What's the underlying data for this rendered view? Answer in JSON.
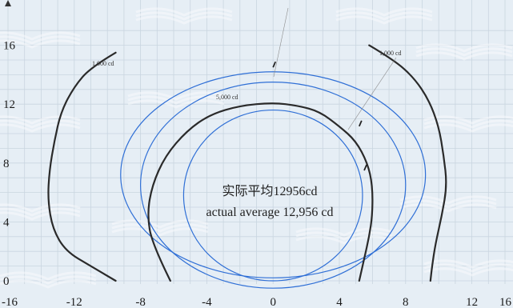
{
  "chart_data": {
    "type": "line",
    "title": "",
    "xlabel": "",
    "ylabel": "",
    "xlim": [
      -16,
      16
    ],
    "ylim": [
      0,
      17
    ],
    "grid": true,
    "x_ticks": [
      -16,
      -12,
      -8,
      -4,
      0,
      4,
      8,
      12,
      16
    ],
    "y_ticks": [
      0,
      4,
      8,
      12,
      16
    ],
    "x_tick_labels": [
      "-16",
      "-12",
      "-8",
      "-4",
      "0",
      "4",
      "8",
      "12",
      "16"
    ],
    "y_tick_labels": [
      "0",
      "4",
      "8",
      "12",
      "16"
    ],
    "annotations": {
      "center_cn": "实际平均12956cd",
      "center_en": "actual average 12,956 cd",
      "iso_left_1000": "1,000 cd",
      "iso_right_1000": "1,000 cd",
      "iso_5000": "5,000 cd"
    },
    "colors": {
      "reference": "#2f6fd6",
      "measured": "#2a2a2a",
      "grid": "#c9d5e0"
    },
    "reference_ellipses": [
      {
        "cx": 0,
        "cy": 5.8,
        "rx": 5.4,
        "ry": 5.8
      },
      {
        "cx": 0,
        "cy": 6.5,
        "rx": 8.0,
        "ry": 7.0
      },
      {
        "cx": 0,
        "cy": 7.2,
        "rx": 9.2,
        "ry": 7.0
      }
    ],
    "measured_curves": [
      {
        "name": "1,000 cd",
        "points": [
          [
            -9.5,
            15.5
          ],
          [
            -11,
            14.5
          ],
          [
            -12,
            13.2
          ],
          [
            -12.8,
            11.5
          ],
          [
            -13.2,
            9.5
          ],
          [
            -13.5,
            7.5
          ],
          [
            -13.6,
            5.5
          ],
          [
            -13.3,
            3.5
          ],
          [
            -12.5,
            2
          ],
          [
            -11,
            1
          ],
          [
            -9.5,
            0
          ]
        ]
      },
      {
        "name": "1,000 cd",
        "points": [
          [
            5.8,
            16
          ],
          [
            7.3,
            15
          ],
          [
            8.5,
            13.8
          ],
          [
            9.4,
            12.3
          ],
          [
            10,
            10.5
          ],
          [
            10.3,
            8.5
          ],
          [
            10.5,
            6.5
          ],
          [
            10.2,
            4.5
          ],
          [
            9.8,
            2.5
          ],
          [
            9.6,
            1
          ],
          [
            9.5,
            0
          ]
        ]
      },
      {
        "name": "5,000 cd",
        "points": [
          [
            -6.2,
            0
          ],
          [
            -7.3,
            2.5
          ],
          [
            -7.6,
            4.5
          ],
          [
            -7.3,
            6.5
          ],
          [
            -6.5,
            8.5
          ],
          [
            -5.2,
            10.2
          ],
          [
            -3.8,
            11.3
          ],
          [
            -2,
            11.9
          ],
          [
            0,
            12.1
          ],
          [
            1.5,
            11.9
          ],
          [
            2.8,
            11.5
          ],
          [
            4,
            10.5
          ],
          [
            5,
            9.5
          ],
          [
            5.7,
            8
          ],
          [
            6,
            6.5
          ],
          [
            6,
            4.5
          ],
          [
            5.8,
            3
          ],
          [
            5.5,
            1.5
          ],
          [
            5.2,
            0
          ]
        ]
      }
    ],
    "markers": [
      [
        0,
        14.5
      ],
      [
        5.2,
        10.5
      ],
      [
        5.5,
        7.5
      ]
    ]
  }
}
